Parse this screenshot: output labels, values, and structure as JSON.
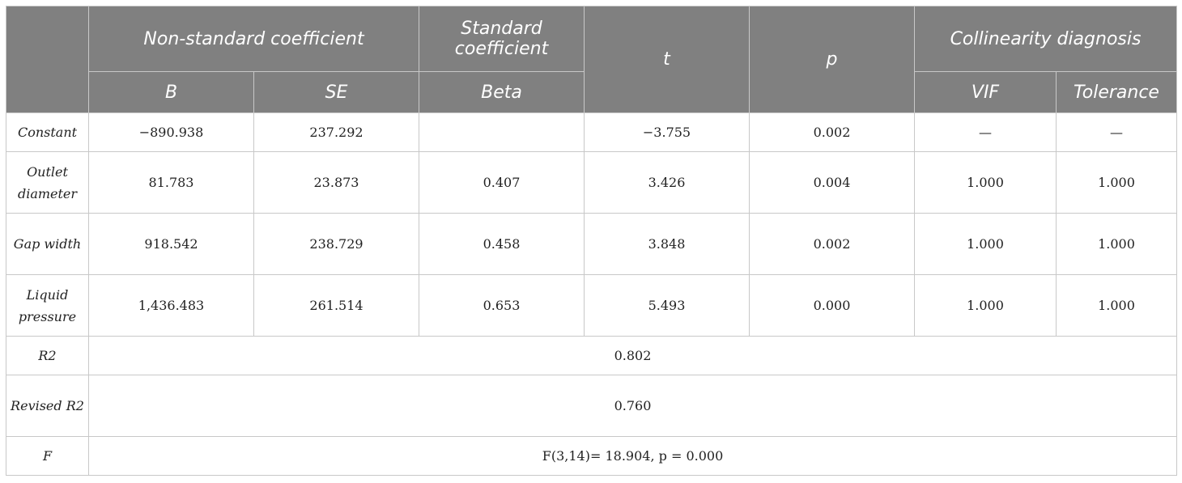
{
  "header": {
    "nonstandard": "Non-standard coefficient",
    "standard": "Standard coefficient",
    "t": "t",
    "p": "p",
    "collinearity": "Collinearity diagnosis",
    "b": "B",
    "se": "SE",
    "beta": "Beta",
    "vif": "VIF",
    "tolerance": "Tolerance"
  },
  "rows": [
    {
      "label": "Constant",
      "b": "−890.938",
      "se": "237.292",
      "beta": "",
      "t": "−3.755",
      "p": "0.002",
      "vif": "—",
      "tolerance": "—"
    },
    {
      "label": "Outlet diameter",
      "b": "81.783",
      "se": "23.873",
      "beta": "0.407",
      "t": "3.426",
      "p": "0.004",
      "vif": "1.000",
      "tolerance": "1.000"
    },
    {
      "label": "Gap width",
      "b": "918.542",
      "se": "238.729",
      "beta": "0.458",
      "t": "3.848",
      "p": "0.002",
      "vif": "1.000",
      "tolerance": "1.000"
    },
    {
      "label": "Liquid pressure",
      "b": "1,436.483",
      "se": "261.514",
      "beta": "0.653",
      "t": "5.493",
      "p": "0.000",
      "vif": "1.000",
      "tolerance": "1.000"
    }
  ],
  "summary": {
    "r2_label": "R2",
    "r2_value": "0.802",
    "revised_label": "Revised R2",
    "revised_value": "0.760",
    "f_label": "F",
    "f_value": "F(3,14)= 18.904, p = 0.000"
  }
}
